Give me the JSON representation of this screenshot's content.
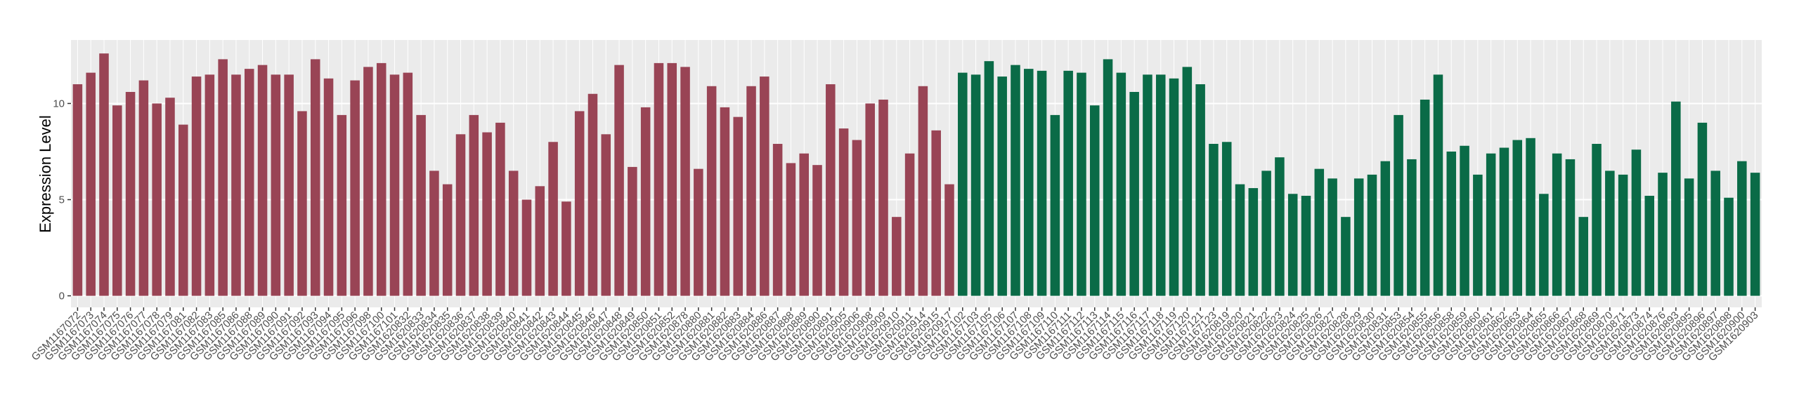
{
  "chart_data": {
    "type": "bar",
    "y_label": "Expression Level",
    "ylim": [
      -0.6,
      13.3
    ],
    "yticks": [
      0,
      5,
      10
    ],
    "grid": true,
    "groups": [
      {
        "color": "#994455",
        "categories": [
          "GSM1167072",
          "GSM1167073",
          "GSM1167074",
          "GSM1167075",
          "GSM1167076",
          "GSM1167077",
          "GSM1167078",
          "GSM1167079",
          "GSM1167081",
          "GSM1167082",
          "GSM1167083",
          "GSM1167085",
          "GSM1167086",
          "GSM1167088",
          "GSM1167089",
          "GSM1167090",
          "GSM1167091",
          "GSM1167092",
          "GSM1167093",
          "GSM1167094",
          "GSM1167095",
          "GSM1167096",
          "GSM1167098",
          "GSM1167100",
          "GSM1167101",
          "GSM1620832",
          "GSM1620833",
          "GSM1620834",
          "GSM1620835",
          "GSM1620836",
          "GSM1620837",
          "GSM1620838",
          "GSM1620839",
          "GSM1620840",
          "GSM1620841",
          "GSM1620842",
          "GSM1620843",
          "GSM1620844",
          "GSM1620845",
          "GSM1620846",
          "GSM1620847",
          "GSM1620848",
          "GSM1620849",
          "GSM1620850",
          "GSM1620851",
          "GSM1620852",
          "GSM1620878",
          "GSM1620880",
          "GSM1620881",
          "GSM1620882",
          "GSM1620883",
          "GSM1620884",
          "GSM1620886",
          "GSM1620887",
          "GSM1620888",
          "GSM1620889",
          "GSM1620890",
          "GSM1620891",
          "GSM1620905",
          "GSM1620906",
          "GSM1620908",
          "GSM1620909",
          "GSM1620910",
          "GSM1620911",
          "GSM1620914",
          "GSM1620915",
          "GSM1620917"
        ],
        "values": [
          11.0,
          11.6,
          12.6,
          9.9,
          10.6,
          11.2,
          10.0,
          10.3,
          8.9,
          11.4,
          11.5,
          12.3,
          11.5,
          11.8,
          12.0,
          11.5,
          11.5,
          9.6,
          12.3,
          11.3,
          9.4,
          11.2,
          11.9,
          12.1,
          11.5,
          11.6,
          9.4,
          6.5,
          5.8,
          8.4,
          9.4,
          8.5,
          9.0,
          6.5,
          5.0,
          5.7,
          8.0,
          4.9,
          9.6,
          10.5,
          8.4,
          12.0,
          6.7,
          9.8,
          12.1,
          12.1,
          11.9,
          6.6,
          10.9,
          9.8,
          9.3,
          10.9,
          11.4,
          7.9,
          6.9,
          7.4,
          6.8,
          11.0,
          8.7,
          8.1,
          10.0,
          10.2,
          4.1,
          7.4,
          10.9,
          8.6,
          5.8
        ]
      },
      {
        "color": "#0a6b47",
        "categories": [
          "GSM1167102",
          "GSM1167103",
          "GSM1167105",
          "GSM1167106",
          "GSM1167107",
          "GSM1167108",
          "GSM1167109",
          "GSM1167110",
          "GSM1167111",
          "GSM1167112",
          "GSM1167113",
          "GSM1167114",
          "GSM1167115",
          "GSM1167116",
          "GSM1167117",
          "GSM1167118",
          "GSM1167119",
          "GSM1167120",
          "GSM1167121",
          "GSM1167123",
          "GSM1620819",
          "GSM1620820",
          "GSM1620821",
          "GSM1620822",
          "GSM1620823",
          "GSM1620824",
          "GSM1620825",
          "GSM1620826",
          "GSM1620827",
          "GSM1620828",
          "GSM1620829",
          "GSM1620830",
          "GSM1620831",
          "GSM1620853",
          "GSM1620854",
          "GSM1620855",
          "GSM1620856",
          "GSM1620858",
          "GSM1620859",
          "GSM1620860",
          "GSM1620861",
          "GSM1620862",
          "GSM1620863",
          "GSM1620864",
          "GSM1620865",
          "GSM1620866",
          "GSM1620867",
          "GSM1620868",
          "GSM1620869",
          "GSM1620870",
          "GSM1620871",
          "GSM1620873",
          "GSM1620874",
          "GSM1620876",
          "GSM1620893",
          "GSM1620895",
          "GSM1620896",
          "GSM1620897",
          "GSM1620898",
          "GSM1620900",
          "GSM1620903"
        ],
        "values": [
          11.6,
          11.5,
          12.2,
          11.4,
          12.0,
          11.8,
          11.7,
          9.4,
          11.7,
          11.6,
          9.9,
          12.3,
          11.6,
          10.6,
          11.5,
          11.5,
          11.3,
          11.9,
          11.0,
          7.9,
          8.0,
          5.8,
          5.6,
          6.5,
          7.2,
          5.3,
          5.2,
          6.6,
          6.1,
          4.1,
          6.1,
          6.3,
          7.0,
          9.4,
          7.1,
          10.2,
          11.5,
          7.5,
          7.8,
          6.3,
          7.4,
          7.7,
          8.1,
          8.2,
          5.3,
          7.4,
          7.1,
          4.1,
          7.9,
          6.5,
          6.3,
          7.6,
          5.2,
          6.4,
          10.1,
          6.1,
          9.0,
          6.5,
          5.1,
          7.0,
          6.4
        ]
      }
    ]
  }
}
